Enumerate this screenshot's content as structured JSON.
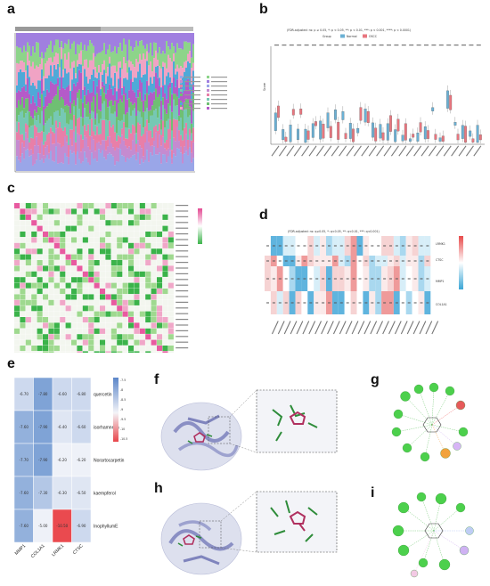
{
  "panels": {
    "a": "a",
    "b": "b",
    "c": "c",
    "d": "d",
    "e": "e",
    "f": "f",
    "g": "g",
    "h": "h",
    "i": "i"
  },
  "panel_b": {
    "header": "(FDR-adjusted: ns: p ≥ 0.05, *: p < 0.05, **: p < 0.01, ***: p < 0.001, ****: p < 0.0001)",
    "legend_group": "Group",
    "legend_normal": "Normal",
    "legend_oscc": "OSCC",
    "ylabel": "Score",
    "normal_color": "#6ab0d4",
    "oscc_color": "#e8767f"
  },
  "panel_d": {
    "header": "(FDR-adjusted: ns: q≥0.05, *: q<0.05, **: q<0.01, ***: q<0.001)",
    "rows": [
      "LRMK1",
      "CTSC",
      "MMP1",
      "COL1A1"
    ]
  },
  "chart_data": [
    {
      "type": "heatmap",
      "panel": "e",
      "rows": [
        "quercetin",
        "isorhamnetin",
        "Norartocarpetin",
        "kaempferol",
        "InophyllumE"
      ],
      "columns": [
        "MMP1",
        "COL1A1",
        "LRMK1",
        "CTSC"
      ],
      "values": [
        [
          -6.7,
          -7.8,
          -6.6,
          -6.8
        ],
        [
          -7.6,
          -7.9,
          -6.4,
          -6.6
        ],
        [
          -7.7,
          -7.9,
          -6.2,
          -6.2
        ],
        [
          -7.6,
          -7.3,
          -6.3,
          -6.5
        ],
        [
          -7.6,
          -5.0,
          -10.5,
          -6.9
        ]
      ],
      "labels": [
        [
          "-6.70",
          "-7.80",
          "-6.60",
          "-6.80"
        ],
        [
          "-7.60",
          "-7.90",
          "-6.40",
          "-6.60"
        ],
        [
          "-7.70",
          "-7.90",
          "-6.20",
          "-6.20"
        ],
        [
          "-7.60",
          "-7.30",
          "-6.30",
          "-6.50"
        ],
        [
          "-7.60",
          "-5.00",
          "-10.50",
          "-6.90"
        ]
      ],
      "colorbar_ticks": [
        "-7.5",
        "-8",
        "-8.5",
        "-9",
        "-9.5",
        "-10",
        "-10.5"
      ]
    }
  ]
}
